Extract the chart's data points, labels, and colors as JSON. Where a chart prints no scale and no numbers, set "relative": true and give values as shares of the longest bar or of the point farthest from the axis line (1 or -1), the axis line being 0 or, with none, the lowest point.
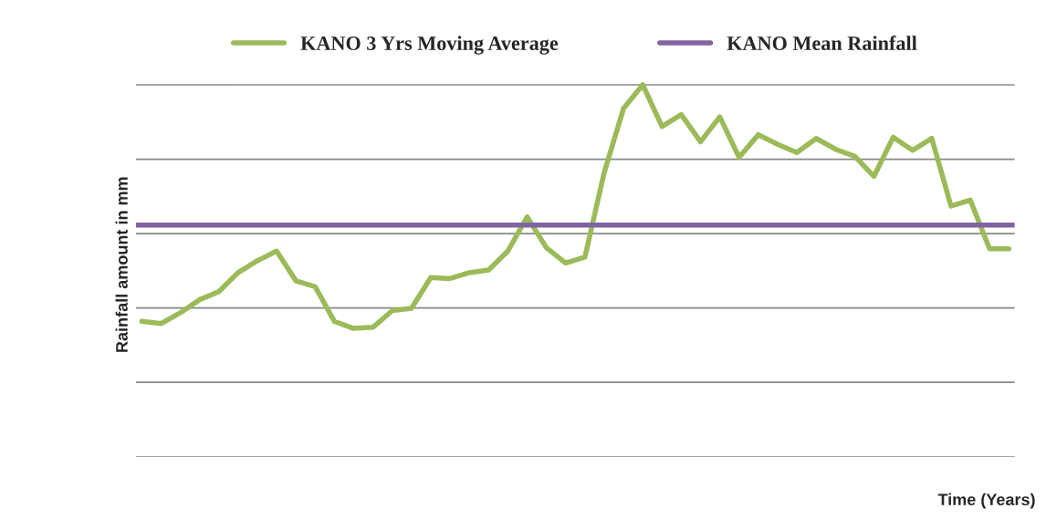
{
  "chart_data": {
    "type": "line",
    "relative": true,
    "ylabel": "Rainfall amount in mm",
    "xlabel": "Time (Years)",
    "legend": "top",
    "grid": "y",
    "line_style": "solid",
    "marker": "none",
    "categories": [
      null,
      null,
      null,
      null,
      null,
      null,
      null,
      null,
      null,
      null,
      null,
      null,
      null,
      null,
      null,
      null,
      null,
      null,
      null,
      null,
      null,
      null,
      null,
      null,
      null,
      null,
      null,
      null,
      null,
      null,
      null,
      null,
      null,
      null,
      null,
      null,
      null,
      null,
      null,
      null,
      null,
      null,
      null,
      null,
      null,
      null
    ],
    "series": [
      {
        "name": "KANO 3 Yrs Moving Average",
        "color": "#9bbb59",
        "values": [
          0.364,
          0.358,
          0.387,
          0.422,
          0.444,
          0.495,
          0.527,
          0.553,
          0.473,
          0.457,
          0.364,
          0.345,
          0.348,
          0.393,
          0.399,
          0.482,
          0.479,
          0.495,
          0.502,
          0.553,
          0.645,
          0.562,
          0.521,
          0.537,
          0.764,
          0.936,
          1,
          0.888,
          0.92,
          0.847,
          0.914,
          0.805,
          0.866,
          0.84,
          0.818,
          0.856,
          0.827,
          0.808,
          0.754,
          0.859,
          0.824,
          0.856,
          0.674,
          0.69,
          0.559,
          0.559
        ]
      }
    ],
    "ref_lines": [
      {
        "axis": "y",
        "value": 0.623,
        "label": "KANO Mean Rainfall",
        "color": "#8064a2",
        "line_style": "solid"
      }
    ]
  }
}
